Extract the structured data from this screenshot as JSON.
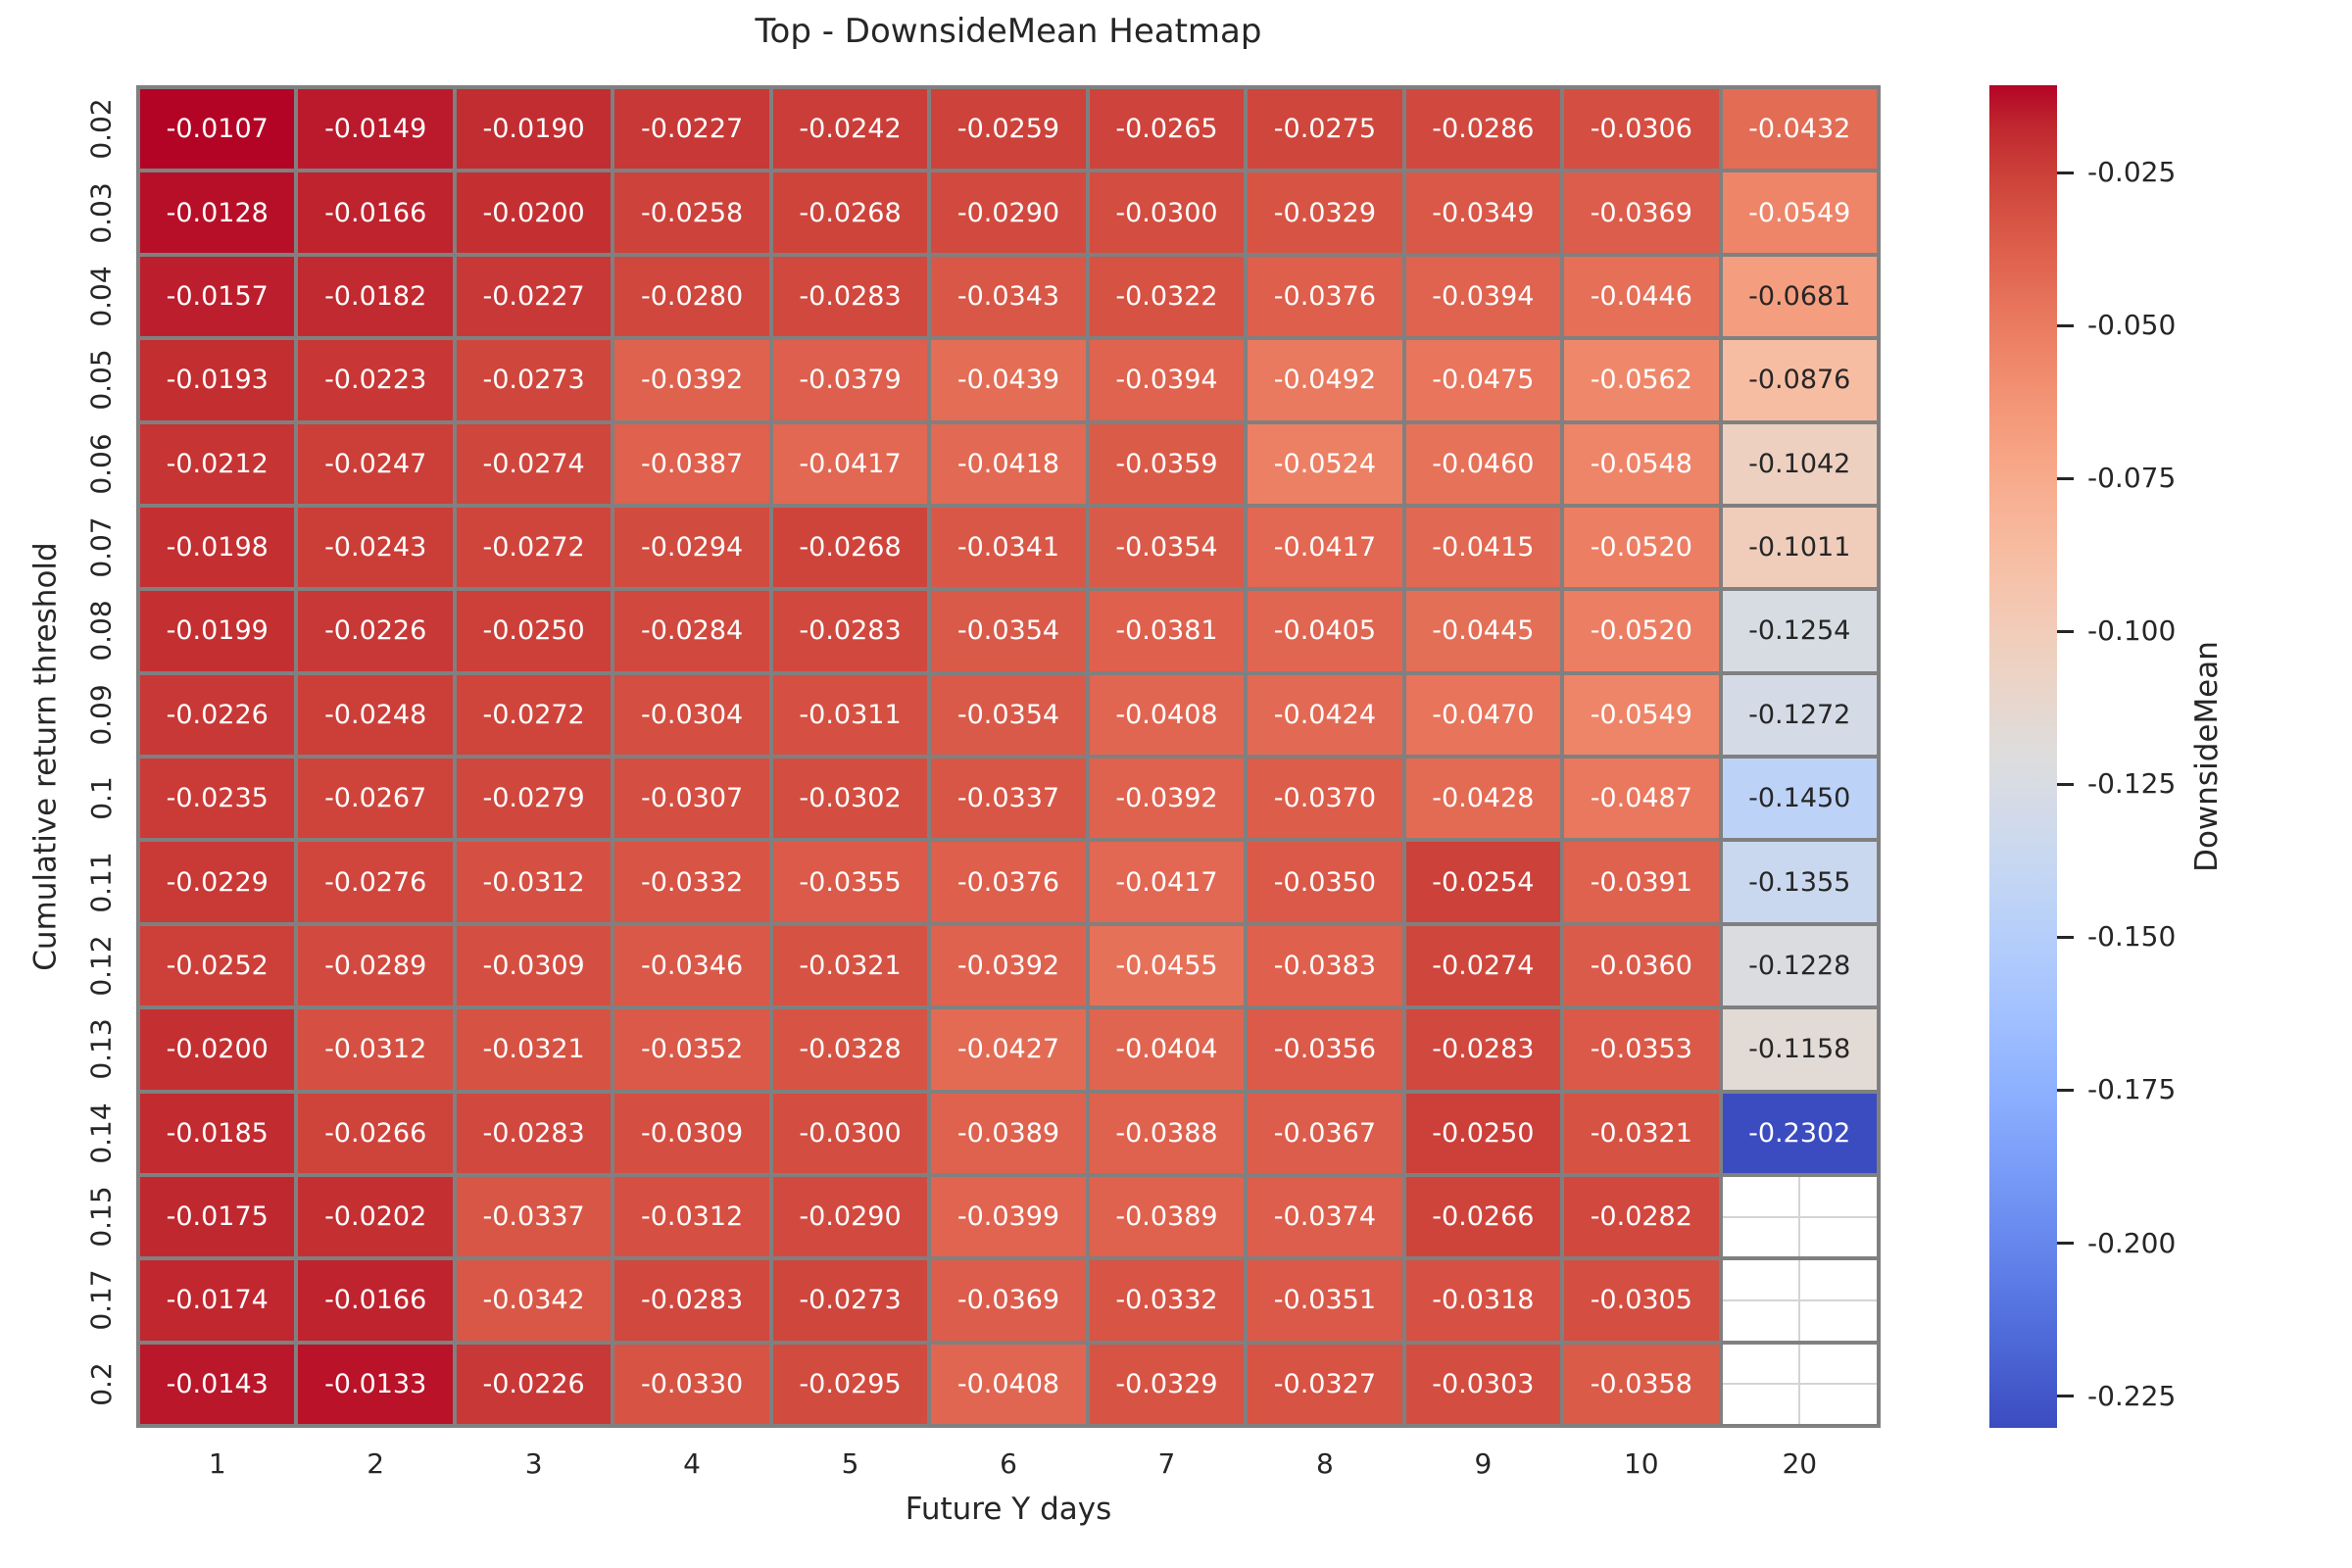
{
  "chart_data": {
    "type": "heatmap",
    "title": "Top - DownsideMean Heatmap",
    "xlabel": "Future Y days",
    "ylabel": "Cumulative return threshold",
    "colorbar_label": "DownsideMean",
    "x_categories": [
      "1",
      "2",
      "3",
      "4",
      "5",
      "6",
      "7",
      "8",
      "9",
      "10",
      "20"
    ],
    "y_categories": [
      "0.02",
      "0.03",
      "0.04",
      "0.05",
      "0.06",
      "0.07",
      "0.08",
      "0.09",
      "0.1",
      "0.11",
      "0.12",
      "0.13",
      "0.14",
      "0.15",
      "0.17",
      "0.2"
    ],
    "values": [
      [
        -0.0107,
        -0.0149,
        -0.019,
        -0.0227,
        -0.0242,
        -0.0259,
        -0.0265,
        -0.0275,
        -0.0286,
        -0.0306,
        -0.0432
      ],
      [
        -0.0128,
        -0.0166,
        -0.02,
        -0.0258,
        -0.0268,
        -0.029,
        -0.03,
        -0.0329,
        -0.0349,
        -0.0369,
        -0.0549
      ],
      [
        -0.0157,
        -0.0182,
        -0.0227,
        -0.028,
        -0.0283,
        -0.0343,
        -0.0322,
        -0.0376,
        -0.0394,
        -0.0446,
        -0.0681
      ],
      [
        -0.0193,
        -0.0223,
        -0.0273,
        -0.0392,
        -0.0379,
        -0.0439,
        -0.0394,
        -0.0492,
        -0.0475,
        -0.0562,
        -0.0876
      ],
      [
        -0.0212,
        -0.0247,
        -0.0274,
        -0.0387,
        -0.0417,
        -0.0418,
        -0.0359,
        -0.0524,
        -0.046,
        -0.0548,
        -0.1042
      ],
      [
        -0.0198,
        -0.0243,
        -0.0272,
        -0.0294,
        -0.0268,
        -0.0341,
        -0.0354,
        -0.0417,
        -0.0415,
        -0.052,
        -0.1011
      ],
      [
        -0.0199,
        -0.0226,
        -0.025,
        -0.0284,
        -0.0283,
        -0.0354,
        -0.0381,
        -0.0405,
        -0.0445,
        -0.052,
        -0.1254
      ],
      [
        -0.0226,
        -0.0248,
        -0.0272,
        -0.0304,
        -0.0311,
        -0.0354,
        -0.0408,
        -0.0424,
        -0.047,
        -0.0549,
        -0.1272
      ],
      [
        -0.0235,
        -0.0267,
        -0.0279,
        -0.0307,
        -0.0302,
        -0.0337,
        -0.0392,
        -0.037,
        -0.0428,
        -0.0487,
        -0.145
      ],
      [
        -0.0229,
        -0.0276,
        -0.0312,
        -0.0332,
        -0.0355,
        -0.0376,
        -0.0417,
        -0.035,
        -0.0254,
        -0.0391,
        -0.1355
      ],
      [
        -0.0252,
        -0.0289,
        -0.0309,
        -0.0346,
        -0.0321,
        -0.0392,
        -0.0455,
        -0.0383,
        -0.0274,
        -0.036,
        -0.1228
      ],
      [
        -0.02,
        -0.0312,
        -0.0321,
        -0.0352,
        -0.0328,
        -0.0427,
        -0.0404,
        -0.0356,
        -0.0283,
        -0.0353,
        -0.1158
      ],
      [
        -0.0185,
        -0.0266,
        -0.0283,
        -0.0309,
        -0.03,
        -0.0389,
        -0.0388,
        -0.0367,
        -0.025,
        -0.0321,
        -0.2302
      ],
      [
        -0.0175,
        -0.0202,
        -0.0337,
        -0.0312,
        -0.029,
        -0.0399,
        -0.0389,
        -0.0374,
        -0.0266,
        -0.0282,
        null
      ],
      [
        -0.0174,
        -0.0166,
        -0.0342,
        -0.0283,
        -0.0273,
        -0.0369,
        -0.0332,
        -0.0351,
        -0.0318,
        -0.0305,
        null
      ],
      [
        -0.0143,
        -0.0133,
        -0.0226,
        -0.033,
        -0.0295,
        -0.0408,
        -0.0329,
        -0.0327,
        -0.0303,
        -0.0358,
        null
      ]
    ],
    "value_decimals": 4,
    "vmin": -0.2302,
    "vmax": -0.0107,
    "colorbar_ticks": [
      {
        "value": -0.025,
        "label": "-0.025"
      },
      {
        "value": -0.05,
        "label": "-0.050"
      },
      {
        "value": -0.075,
        "label": "-0.075"
      },
      {
        "value": -0.1,
        "label": "-0.100"
      },
      {
        "value": -0.125,
        "label": "-0.125"
      },
      {
        "value": -0.15,
        "label": "-0.150"
      },
      {
        "value": -0.175,
        "label": "-0.175"
      },
      {
        "value": -0.2,
        "label": "-0.200"
      },
      {
        "value": -0.225,
        "label": "-0.225"
      }
    ],
    "colorbar_position": "right",
    "grid": "cell-borders",
    "colormap": {
      "name": "coolwarm",
      "anchors": [
        "#3B4CC0",
        "#445ACC",
        "#4D68D7",
        "#5775E1",
        "#6282EA",
        "#6C8EF1",
        "#779AF7",
        "#82A5FB",
        "#8DB0FE",
        "#98B9FF",
        "#A3C2FF",
        "#AEC9FD",
        "#B8D0F9",
        "#C2D5F4",
        "#CCD9EE",
        "#D5DBE6",
        "#DDDDDD",
        "#E5D8D1",
        "#ECD3C5",
        "#F1CCB9",
        "#F5C4AD",
        "#F7BBA0",
        "#F7B194",
        "#F7A687",
        "#F49A7B",
        "#F18D6F",
        "#EC7F63",
        "#E57058",
        "#DE604D",
        "#D55042",
        "#CB3E38",
        "#C0282F",
        "#B40426"
      ]
    },
    "colors": {
      "grid_line": "#808080",
      "empty_cell_line": "#d4d4d4",
      "cell_text_light": "#ffffff",
      "cell_text_dark": "#262626",
      "axis_text": "#262626",
      "background": "#ffffff"
    },
    "text_luminance_threshold": 0.408
  }
}
